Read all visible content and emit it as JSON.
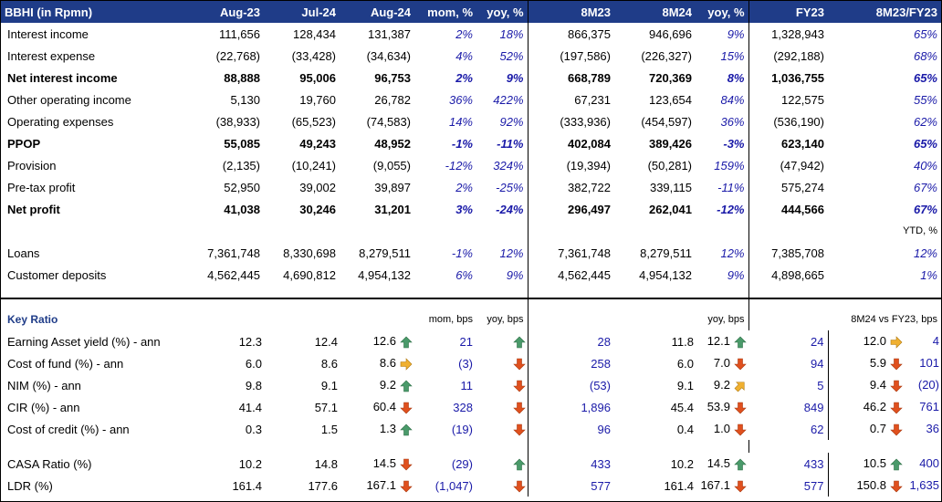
{
  "header": {
    "title": "BBHI (in Rpmn)",
    "cols": [
      "Aug-23",
      "Jul-24",
      "Aug-24",
      "mom, %",
      "yoy, %",
      "8M23",
      "8M24",
      "yoy, %",
      "FY23",
      "8M23/FY23"
    ]
  },
  "pl_rows": [
    {
      "label": "Interest income",
      "bold": false,
      "v": [
        "111,656",
        "128,434",
        "131,387",
        "2%",
        "18%",
        "866,375",
        "946,696",
        "9%",
        "1,328,943",
        "65%"
      ]
    },
    {
      "label": "Interest expense",
      "bold": false,
      "v": [
        "(22,768)",
        "(33,428)",
        "(34,634)",
        "4%",
        "52%",
        "(197,586)",
        "(226,327)",
        "15%",
        "(292,188)",
        "68%"
      ]
    },
    {
      "label": "Net interest income",
      "bold": true,
      "v": [
        "88,888",
        "95,006",
        "96,753",
        "2%",
        "9%",
        "668,789",
        "720,369",
        "8%",
        "1,036,755",
        "65%"
      ]
    },
    {
      "label": "Other operating income",
      "bold": false,
      "v": [
        "5,130",
        "19,760",
        "26,782",
        "36%",
        "422%",
        "67,231",
        "123,654",
        "84%",
        "122,575",
        "55%"
      ]
    },
    {
      "label": "Operating expenses",
      "bold": false,
      "v": [
        "(38,933)",
        "(65,523)",
        "(74,583)",
        "14%",
        "92%",
        "(333,936)",
        "(454,597)",
        "36%",
        "(536,190)",
        "62%"
      ]
    },
    {
      "label": "PPOP",
      "bold": true,
      "v": [
        "55,085",
        "49,243",
        "48,952",
        "-1%",
        "-11%",
        "402,084",
        "389,426",
        "-3%",
        "623,140",
        "65%"
      ]
    },
    {
      "label": "Provision",
      "bold": false,
      "v": [
        "(2,135)",
        "(10,241)",
        "(9,055)",
        "-12%",
        "324%",
        "(19,394)",
        "(50,281)",
        "159%",
        "(47,942)",
        "40%"
      ]
    },
    {
      "label": "Pre-tax profit",
      "bold": false,
      "v": [
        "52,950",
        "39,002",
        "39,897",
        "2%",
        "-25%",
        "382,722",
        "339,115",
        "-11%",
        "575,274",
        "67%"
      ]
    },
    {
      "label": "Net profit",
      "bold": true,
      "v": [
        "41,038",
        "30,246",
        "31,201",
        "3%",
        "-24%",
        "296,497",
        "262,041",
        "-12%",
        "444,566",
        "67%"
      ]
    }
  ],
  "ytd_label": "YTD, %",
  "bs_rows": [
    {
      "label": "Loans",
      "v": [
        "7,361,748",
        "8,330,698",
        "8,279,511",
        "-1%",
        "12%",
        "7,361,748",
        "8,279,511",
        "12%",
        "7,385,708",
        "12%"
      ]
    },
    {
      "label": "Customer deposits",
      "v": [
        "4,562,445",
        "4,690,812",
        "4,954,132",
        "6%",
        "9%",
        "4,562,445",
        "4,954,132",
        "9%",
        "4,898,665",
        "1%"
      ]
    }
  ],
  "ratio": {
    "title": "Key Ratio",
    "mom_label": "mom, bps",
    "yoy_label": "yoy, bps",
    "yoy8_label": "yoy, bps",
    "fy_label": "8M24 vs FY23, bps",
    "rows": [
      {
        "label": "Earning Asset yield (%) - ann",
        "aug23": "12.3",
        "jul24": "12.4",
        "aug24": "12.6",
        "mom_icon": "up",
        "mom": "21",
        "yoy_icon": "up",
        "yoy": "28",
        "m23": "11.8",
        "m24": "12.1",
        "y8_icon": "up",
        "y8": "24",
        "fy": "12.0",
        "fy_icon": "flat",
        "fyv": "4"
      },
      {
        "label": "Cost of fund (%) - ann",
        "aug23": "6.0",
        "jul24": "8.6",
        "aug24": "8.6",
        "mom_icon": "flat",
        "mom": "(3)",
        "yoy_icon": "down",
        "yoy": "258",
        "m23": "6.0",
        "m24": "7.0",
        "y8_icon": "down",
        "y8": "94",
        "fy": "5.9",
        "fy_icon": "down",
        "fyv": "101"
      },
      {
        "label": "NIM (%) - ann",
        "aug23": "9.8",
        "jul24": "9.1",
        "aug24": "9.2",
        "mom_icon": "up",
        "mom": "11",
        "yoy_icon": "down",
        "yoy": "(53)",
        "m23": "9.1",
        "m24": "9.2",
        "y8_icon": "upright",
        "y8": "5",
        "fy": "9.4",
        "fy_icon": "down",
        "fyv": "(20)"
      },
      {
        "label": "CIR (%) - ann",
        "aug23": "41.4",
        "jul24": "57.1",
        "aug24": "60.4",
        "mom_icon": "down",
        "mom": "328",
        "yoy_icon": "down",
        "yoy": "1,896",
        "m23": "45.4",
        "m24": "53.9",
        "y8_icon": "down",
        "y8": "849",
        "fy": "46.2",
        "fy_icon": "down",
        "fyv": "761"
      },
      {
        "label": "Cost of credit (%) - ann",
        "aug23": "0.3",
        "jul24": "1.5",
        "aug24": "1.3",
        "mom_icon": "up",
        "mom": "(19)",
        "yoy_icon": "down",
        "yoy": "96",
        "m23": "0.4",
        "m24": "1.0",
        "y8_icon": "down",
        "y8": "62",
        "fy": "0.7",
        "fy_icon": "down",
        "fyv": "36"
      }
    ],
    "rows2": [
      {
        "label": "CASA Ratio (%)",
        "aug23": "10.2",
        "jul24": "14.8",
        "aug24": "14.5",
        "mom_icon": "down",
        "mom": "(29)",
        "yoy_icon": "up",
        "yoy": "433",
        "m23": "10.2",
        "m24": "14.5",
        "y8_icon": "up",
        "y8": "433",
        "fy": "10.5",
        "fy_icon": "up",
        "fyv": "400"
      },
      {
        "label": "LDR (%)",
        "aug23": "161.4",
        "jul24": "177.6",
        "aug24": "167.1",
        "mom_icon": "down",
        "mom": "(1,047)",
        "yoy_icon": "down",
        "yoy": "577",
        "m23": "161.4",
        "m24": "167.1",
        "y8_icon": "down",
        "y8": "577",
        "fy": "150.8",
        "fy_icon": "down",
        "fyv": "1,635"
      }
    ]
  },
  "colors": {
    "header_bg": "#1f3c88",
    "pct_blue": "#1a1aa8",
    "up_green": "#4a9a6a",
    "down_red": "#e0501e",
    "flat_orange": "#f0b030"
  }
}
